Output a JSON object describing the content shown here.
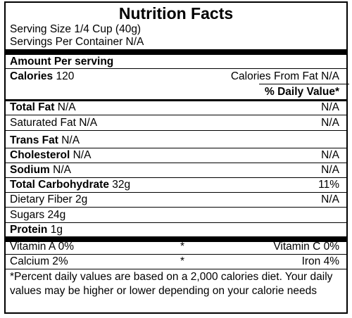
{
  "title": "Nutrition Facts",
  "serving_size": "Serving Size 1/4 Cup (40g)",
  "servings_per_container": "Servings Per Container N/A",
  "amount_per_serving": "Amount Per serving",
  "calories": {
    "label": "Calories",
    "value": "120"
  },
  "calories_from_fat": {
    "label": "Calories From Fat",
    "value": "N/A"
  },
  "daily_value_header": "% Daily Value*",
  "nutrients": {
    "total_fat": {
      "label": "Total Fat",
      "amount": "N/A",
      "dv": "N/A"
    },
    "saturated_fat": {
      "label": "Saturated Fat",
      "amount": "N/A",
      "dv": "N/A"
    },
    "trans_fat": {
      "label": "Trans Fat",
      "amount": "N/A"
    },
    "cholesterol": {
      "label": "Cholesterol",
      "amount": "N/A",
      "dv": "N/A"
    },
    "sodium": {
      "label": "Sodium",
      "amount": "N/A",
      "dv": "N/A"
    },
    "total_carbohydrate": {
      "label": "Total Carbohydrate",
      "amount": "32g",
      "dv": "11%"
    },
    "dietary_fiber": {
      "label": "Dietary Fiber",
      "amount": "2g",
      "dv": "N/A"
    },
    "sugars": {
      "label": "Sugars",
      "amount": "24g"
    },
    "protein": {
      "label": "Protein",
      "amount": "1g"
    }
  },
  "vitamins": {
    "vitamin_a": "Vitamin A 0%",
    "vitamin_c": "Vitamin C 0%",
    "calcium": "Calcium 2%",
    "iron": "Iron 4%",
    "separator": "*"
  },
  "footnote": "*Percent daily values are based on a 2,000 calories diet. Your daily values may be higher or lower depending on your calorie needs"
}
